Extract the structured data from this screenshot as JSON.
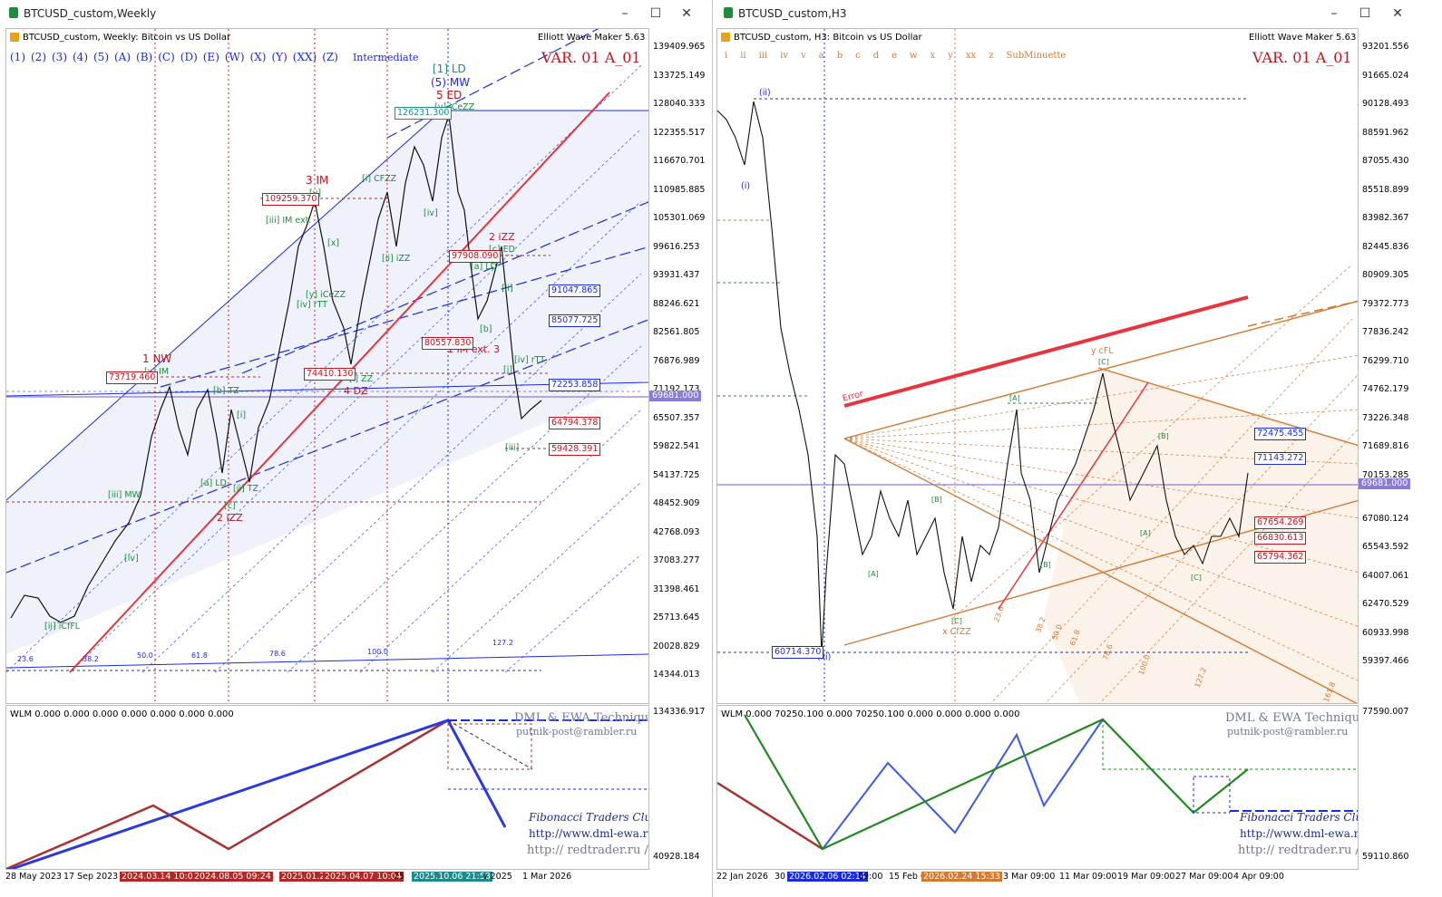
{
  "left": {
    "window_title": "BTCUSD_custom,Weekly",
    "header": {
      "symbol_line": "BTCUSD_custom, Weekly:  Bitcoin vs US Dollar",
      "degree_labels": [
        "(1)",
        "(2)",
        "(3)",
        "(4)",
        "(5)",
        "(A)",
        "(B)",
        "(C)",
        "(D)",
        "(E)",
        "(W)",
        "(X)",
        "(Y)",
        "(XX)",
        "(Z)"
      ],
      "degree_name": "Intermediate",
      "ewm": "Elliott Wave Maker 5.63",
      "variant": "VAR. 01 A_01"
    },
    "price_axis": [
      "139409.965",
      "133725.149",
      "128040.333",
      "122355.517",
      "116670.701",
      "110985.885",
      "105301.069",
      "99616.253",
      "93931.437",
      "88246.621",
      "82561.805",
      "76876.989",
      "71192.173",
      "65507.357",
      "59822.541",
      "54137.725",
      "48452.909",
      "42768.093",
      "37083.277",
      "31398.461",
      "25713.645",
      "20028.829",
      "14344.013"
    ],
    "current_price": "69681.000",
    "price_labels": {
      "p1": "126231.300",
      "p2": "109259.370",
      "p3": "97908.090",
      "p4": "91047.865",
      "p5": "85077.725",
      "p6": "80557.830",
      "p7": "74410.130",
      "p8": "73719.460",
      "p9": "72253.858",
      "p10": "64794.378",
      "p11": "59428.391"
    },
    "wave_labels": {
      "w1": "[1] LD",
      "w2": "(5) MW",
      "w3": "5 ED",
      "w4": "[v] iCeZZ",
      "w5": "3 IM",
      "w6": "[y]",
      "w7": "[i] CFZZ",
      "w8": "[iii] IM ext.",
      "w9": "[iv]",
      "w10": "[x]",
      "w11": "[ii] iZZ",
      "w12": "[y] iCeZZ",
      "w13": "[iv] rTT",
      "w14": "2 iZZ",
      "w15": "[c] ED",
      "w16": "[a] LD",
      "w17": "[b]",
      "w18": "[ii]",
      "w19": "1 IM ext. 3",
      "w20": "[iv] rTT",
      "w21": "[i]",
      "w22": "[iii]",
      "w23": "[i] ZZ",
      "w24": "4 DZ",
      "w25": "1 NW",
      "w26": "[v] IM",
      "w27": "[b] TZ",
      "w28": "[i]",
      "w29": "[a] LD",
      "w30": "[ii] TZ",
      "w31": "[c]",
      "w32": "2 iZZ",
      "w33": "[iii] MW",
      "w34": "[iv]",
      "w35": "[ii] iCfFL"
    },
    "fib_labels": [
      "23.6",
      "38.2",
      "50.0",
      "61.8",
      "78.6",
      "100.0",
      "127.2"
    ],
    "oscillator": {
      "header": "WLM 0.000 0.000 0.000 0.000 0.000 0.000 0.000",
      "axis_top": "134336.917",
      "axis_bottom": "40928.184",
      "wm1": "DML & EWA Technique",
      "wm2": "putnik-post@rambler.ru",
      "wm3": "Fibonacci    Traders    Club",
      "wm4": "http://www.dml-ewa.ru",
      "wm5": "http://  redtrader.ru  /"
    },
    "time_axis": [
      "28 May 2023",
      "17 Sep 2023",
      "2024.03.14 10:05",
      "2024.08.05 09:24",
      "2025.01.2",
      "2025.04.07 10:04",
      "25",
      "2025.10.06 21:58",
      "v 2025",
      "1 Mar 2026"
    ]
  },
  "right": {
    "window_title": "BTCUSD_custom,H3",
    "header": {
      "symbol_line": "BTCUSD_custom, H3:  Bitcoin vs US Dollar",
      "degree_labels": [
        "i",
        "ii",
        "iii",
        "iv",
        "v",
        "a",
        "b",
        "c",
        "d",
        "e",
        "w",
        "x",
        "y",
        "xx",
        "z"
      ],
      "degree_name": "SubMinuette",
      "ewm": "Elliott Wave Maker 5.63",
      "variant": "VAR. 01 A_01"
    },
    "price_axis": [
      "93201.556",
      "91665.024",
      "90128.493",
      "88591.962",
      "87055.430",
      "85518.899",
      "83982.367",
      "82445.836",
      "80909.305",
      "79372.773",
      "77836.242",
      "76299.710",
      "74762.179",
      "73226.348",
      "71689.816",
      "70153.285",
      "69681.000",
      "67080.124",
      "65543.592",
      "64007.061",
      "62470.529",
      "60933.998",
      "59397.466"
    ],
    "current_price": "69681.000",
    "price_labels": {
      "p1": "72475.455",
      "p2": "71143.272",
      "p3": "67654.269",
      "p4": "66830.613",
      "p5": "65794.362",
      "p6": "60714.370"
    },
    "wave_labels": {
      "w1": "(ii)",
      "w2": "(i)",
      "w3": "y cFL",
      "w4": "[C]",
      "w5": "[A]",
      "w6": "[B]",
      "w7": "[A]",
      "w8": "[B]",
      "w9": "[A]",
      "w10": "[C]",
      "w11": "x CfZZ",
      "w12": "[B]",
      "w13": "[C]",
      "w14": "(iii)",
      "w15": "Error"
    },
    "fib_labels": [
      "23.6",
      "38.2",
      "50.0",
      "61.8",
      "78.6",
      "100.0",
      "127.2",
      "161.8"
    ],
    "oscillator": {
      "header": "WLM 0.000 70250.100 0.000 70250.100 0.000 0.000 0.000 0.000",
      "axis_top": "77590.007",
      "axis_bottom": "59110.860",
      "wm1": "DML & EWA Technique",
      "wm2": "putnik-post@rambler.ru",
      "wm3": "Fibonacci    Traders    Club",
      "wm4": "http://www.dml-ewa.ru",
      "wm5": "http://  redtrader.ru  /"
    },
    "time_axis": [
      "22 Jan 2026",
      "30",
      "2026.02.06 02:14",
      "09:00",
      "15 Feb 0",
      "2026.02.24 15:33",
      "3 Mar 09:00",
      "11 Mar 09:00",
      "19 Mar 09:00",
      "27 Mar 09:00",
      "4 Apr 09:00"
    ]
  },
  "colors": {
    "blue": "#1a2ae0",
    "red": "#e8343c",
    "orange": "#d27a32",
    "green": "#1e8a3c",
    "darkred": "#b02828",
    "purple": "#8b7bd6",
    "teal": "#1e8a8a"
  }
}
